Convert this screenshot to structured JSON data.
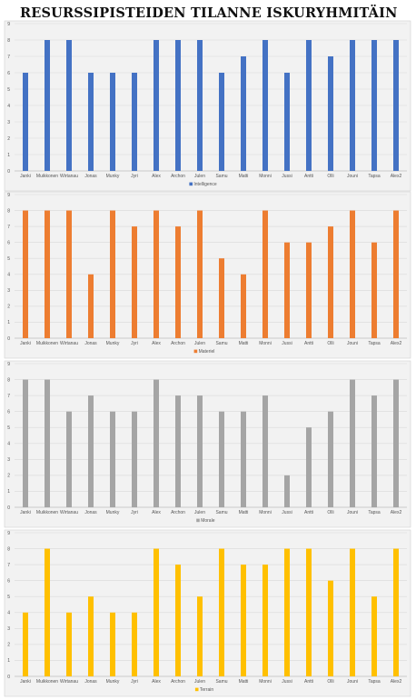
{
  "page_title": "RESURSSIPISTEIDEN TILANNE ISKURYHMITÄIN",
  "chart_data": [
    {
      "type": "bar",
      "categories": [
        "Janki",
        "Muikkonen",
        "Wirtanau",
        "Jonas",
        "Munky",
        "Jyri",
        "Alex",
        "Archon",
        "Julen",
        "Samu",
        "Matti",
        "Monni",
        "Jussi",
        "Antti",
        "Olli",
        "Jouni",
        "Tapsa",
        "Alex2"
      ],
      "series": [
        {
          "name": "Intelligence",
          "values": [
            6,
            8,
            8,
            6,
            6,
            6,
            8,
            8,
            8,
            6,
            7,
            8,
            6,
            8,
            7,
            8,
            8,
            8
          ],
          "color": "#4472C4"
        }
      ],
      "ylim": [
        0,
        9
      ],
      "yticks": [
        0,
        1,
        2,
        3,
        4,
        5,
        6,
        7,
        8,
        9
      ],
      "legend": "bottom",
      "grid": true
    },
    {
      "type": "bar",
      "categories": [
        "Janki",
        "Muikkonen",
        "Wirtanau",
        "Jonas",
        "Munky",
        "Jyri",
        "Alex",
        "Archon",
        "Julen",
        "Samu",
        "Matti",
        "Monni",
        "Jussi",
        "Antti",
        "Olli",
        "Jouni",
        "Tapsa",
        "Alex2"
      ],
      "series": [
        {
          "name": "Materiel",
          "values": [
            8,
            8,
            8,
            4,
            8,
            7,
            8,
            7,
            8,
            5,
            4,
            8,
            6,
            6,
            7,
            8,
            6,
            8
          ],
          "color": "#ED7D31"
        }
      ],
      "ylim": [
        0,
        9
      ],
      "yticks": [
        0,
        1,
        2,
        3,
        4,
        5,
        6,
        7,
        8,
        9
      ],
      "legend": "bottom",
      "grid": true
    },
    {
      "type": "bar",
      "categories": [
        "Janki",
        "Muikkonen",
        "Wirtanau",
        "Jonas",
        "Munky",
        "Jyri",
        "Alex",
        "Archon",
        "Julen",
        "Samu",
        "Matti",
        "Monni",
        "Jussi",
        "Antti",
        "Olli",
        "Jouni",
        "Tapsa",
        "Alex2"
      ],
      "series": [
        {
          "name": "Morale",
          "values": [
            8,
            8,
            6,
            7,
            6,
            6,
            8,
            7,
            7,
            6,
            6,
            7,
            2,
            5,
            6,
            8,
            7,
            8
          ],
          "color": "#A5A5A5"
        }
      ],
      "ylim": [
        0,
        9
      ],
      "yticks": [
        0,
        1,
        2,
        3,
        4,
        5,
        6,
        7,
        8,
        9
      ],
      "legend": "bottom",
      "grid": true
    },
    {
      "type": "bar",
      "categories": [
        "Janki",
        "Muikkonen",
        "Wirtanau",
        "Jonas",
        "Munky",
        "Jyri",
        "Alex",
        "Archon",
        "Julen",
        "Samu",
        "Matti",
        "Monni",
        "Jussi",
        "Antti",
        "Olli",
        "Jouni",
        "Tapsa",
        "Alex2"
      ],
      "series": [
        {
          "name": "Terrain",
          "values": [
            4,
            8,
            4,
            5,
            4,
            4,
            8,
            7,
            5,
            8,
            7,
            7,
            8,
            8,
            6,
            8,
            5,
            8
          ],
          "color": "#FFC000"
        }
      ],
      "ylim": [
        0,
        9
      ],
      "yticks": [
        0,
        1,
        2,
        3,
        4,
        5,
        6,
        7,
        8,
        9
      ],
      "legend": "bottom",
      "grid": true
    }
  ]
}
